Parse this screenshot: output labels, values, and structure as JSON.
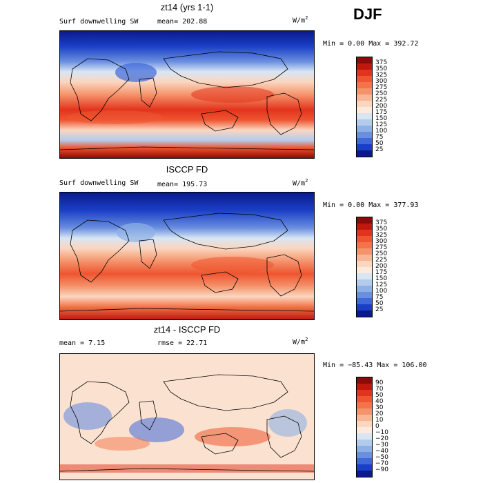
{
  "season": "DJF",
  "panels": [
    {
      "title": "zt14 (yrs 1-1)",
      "variable": "Surf downwelling SW",
      "mean": "mean= 202.88",
      "units": "W/m",
      "units_exp": "2",
      "minmax": "Min =    0.00 Max = 392.72",
      "colorbar": {
        "labels": [
          "375",
          "350",
          "325",
          "300",
          "275",
          "250",
          "225",
          "200",
          "175",
          "150",
          "125",
          "100",
          "75",
          "50",
          "25"
        ],
        "colors": [
          "#8b0a0a",
          "#c0180e",
          "#e2341c",
          "#ee5530",
          "#f27448",
          "#f5946c",
          "#f8b696",
          "#fbd6c0",
          "#fdeadc",
          "#d8e6f4",
          "#b4ccec",
          "#8fb0e6",
          "#6a8fe0",
          "#3f68d8",
          "#1a3fc6",
          "#0a1a8c"
        ]
      }
    },
    {
      "title": "ISCCP FD",
      "variable": "Surf downwelling SW",
      "mean": "mean= 195.73",
      "units": "W/m",
      "units_exp": "2",
      "minmax": "Min =    0.00 Max = 377.93",
      "colorbar": {
        "labels": [
          "375",
          "350",
          "325",
          "300",
          "275",
          "250",
          "225",
          "200",
          "175",
          "150",
          "125",
          "100",
          "75",
          "50",
          "25"
        ],
        "colors": [
          "#8b0a0a",
          "#c0180e",
          "#e2341c",
          "#ee5530",
          "#f27448",
          "#f5946c",
          "#f8b696",
          "#fbd6c0",
          "#fdeadc",
          "#d8e6f4",
          "#b4ccec",
          "#8fb0e6",
          "#6a8fe0",
          "#3f68d8",
          "#1a3fc6",
          "#0a1a8c"
        ]
      }
    },
    {
      "title": "zt14 - ISCCP FD",
      "variable": "",
      "mean": "mean =    7.15",
      "rmse": "rmse =   22.71",
      "units": "W/m",
      "units_exp": "2",
      "minmax": "Min = −85.43 Max = 106.00",
      "colorbar": {
        "labels": [
          "90",
          "70",
          "50",
          "40",
          "30",
          "20",
          "10",
          "0",
          "−10",
          "−20",
          "−30",
          "−40",
          "−50",
          "−70",
          "−90"
        ],
        "colors": [
          "#8b0a0a",
          "#c0180e",
          "#e2341c",
          "#ee5530",
          "#f27448",
          "#f5946c",
          "#f8b696",
          "#fbd6c0",
          "#fdeadc",
          "#d8e6f4",
          "#b4ccec",
          "#8fb0e6",
          "#6a8fe0",
          "#3f68d8",
          "#1a3fc6",
          "#0a1a8c"
        ]
      }
    }
  ],
  "colors": {
    "warm": "#e2341c",
    "cool": "#1a3fc6",
    "neutral": "#fbe2d0"
  }
}
